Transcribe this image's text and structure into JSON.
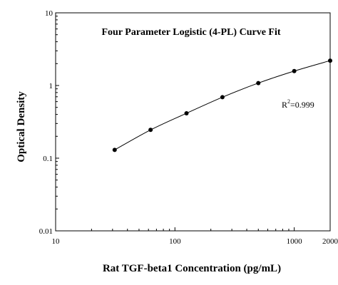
{
  "chart_data": {
    "type": "scatter",
    "title": "Four Parameter Logistic (4-PL) Curve Fit",
    "xlabel": "Rat TGF-beta1 Concentration (pg/mL)",
    "ylabel": "Optical Density",
    "x_scale": "log",
    "y_scale": "log",
    "xlim": [
      10,
      2000
    ],
    "ylim": [
      0.01,
      10
    ],
    "x_ticks": [
      10,
      100,
      1000,
      2000
    ],
    "x_tick_labels": [
      "10",
      "100",
      "1000",
      "2000"
    ],
    "y_ticks": [
      0.01,
      0.1,
      1,
      10
    ],
    "y_tick_labels": [
      "0.01",
      "0.1",
      "1",
      "10"
    ],
    "grid": false,
    "series": [
      {
        "x": [
          31.25,
          62.5,
          125,
          250,
          500,
          1000,
          2000
        ],
        "y": [
          0.13,
          0.245,
          0.415,
          0.69,
          1.08,
          1.58,
          2.2
        ],
        "marker": "circle",
        "line": "4-PL fit",
        "color": "#000000"
      }
    ],
    "annotation": {
      "r_label": "R",
      "r_sup": "2",
      "r_value": "=0.999"
    }
  }
}
